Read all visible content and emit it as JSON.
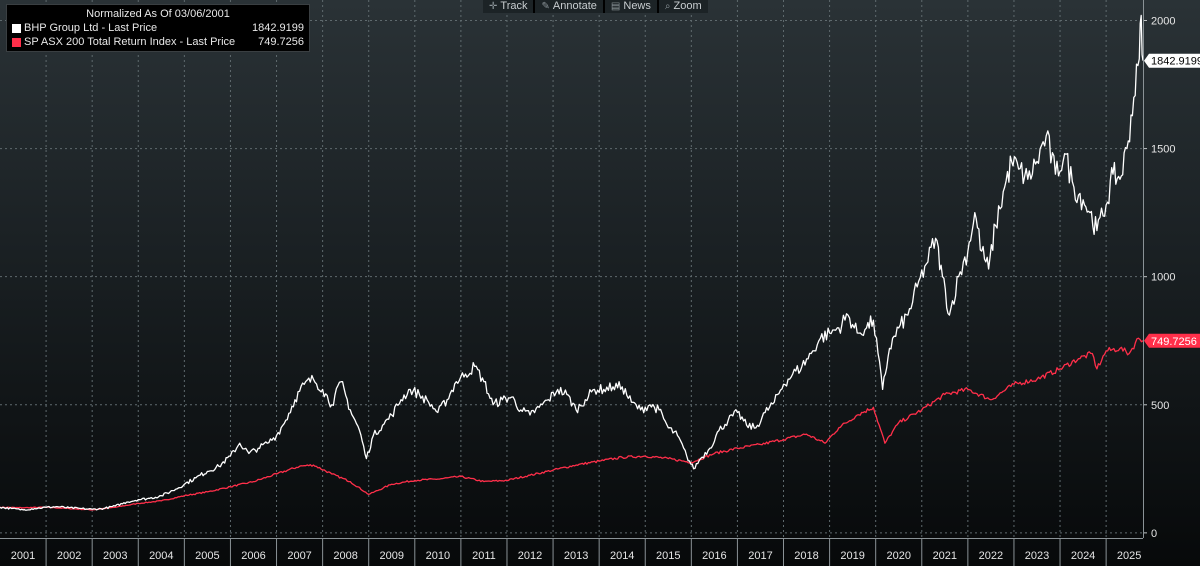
{
  "legend": {
    "title": "Normalized As Of 03/06/2001",
    "items": [
      {
        "name": "BHP Group Ltd - Last Price",
        "value": "1842.9199",
        "color": "#ffffff"
      },
      {
        "name": "SP ASX 200 Total Return Index - Last Price",
        "value": "749.7256",
        "color": "#ff2f4a"
      }
    ]
  },
  "toolbar": {
    "items": [
      {
        "label": "Track",
        "icon": "crosshair-icon"
      },
      {
        "label": "Annotate",
        "icon": "pencil-icon"
      },
      {
        "label": "News",
        "icon": "news-icon"
      },
      {
        "label": "Zoom",
        "icon": "magnifier-icon"
      }
    ]
  },
  "chart_data": {
    "type": "line",
    "title": "Normalized As Of 03/06/2001",
    "x_unit": "year",
    "xlim": [
      2001.0,
      2025.8
    ],
    "ylim": [
      -20,
      2080
    ],
    "y_ticks": [
      0,
      500,
      1000,
      1500,
      2000
    ],
    "x_tick_labels": [
      "2001",
      "2002",
      "2003",
      "2004",
      "2005",
      "2006",
      "2007",
      "2008",
      "2009",
      "2010",
      "2011",
      "2012",
      "2013",
      "2014",
      "2015",
      "2016",
      "2017",
      "2018",
      "2019",
      "2020",
      "2021",
      "2022",
      "2023",
      "2024",
      "2025"
    ],
    "grid": true,
    "legend_position": "top-left",
    "series": [
      {
        "name": "BHP Group Ltd - Last Price",
        "color": "#ffffff",
        "last_value": "1842.9199",
        "points": [
          [
            2001.0,
            100
          ],
          [
            2001.25,
            95
          ],
          [
            2001.5,
            90
          ],
          [
            2001.75,
            95
          ],
          [
            2002.0,
            100
          ],
          [
            2002.25,
            102
          ],
          [
            2002.5,
            98
          ],
          [
            2002.75,
            95
          ],
          [
            2003.0,
            92
          ],
          [
            2003.25,
            95
          ],
          [
            2003.5,
            105
          ],
          [
            2003.75,
            120
          ],
          [
            2004.0,
            130
          ],
          [
            2004.25,
            135
          ],
          [
            2004.5,
            145
          ],
          [
            2004.75,
            165
          ],
          [
            2005.0,
            190
          ],
          [
            2005.25,
            215
          ],
          [
            2005.5,
            240
          ],
          [
            2005.75,
            260
          ],
          [
            2006.0,
            300
          ],
          [
            2006.2,
            350
          ],
          [
            2006.4,
            310
          ],
          [
            2006.6,
            330
          ],
          [
            2006.8,
            350
          ],
          [
            2007.0,
            380
          ],
          [
            2007.2,
            440
          ],
          [
            2007.4,
            520
          ],
          [
            2007.6,
            580
          ],
          [
            2007.8,
            600
          ],
          [
            2008.0,
            560
          ],
          [
            2008.2,
            500
          ],
          [
            2008.4,
            590
          ],
          [
            2008.6,
            480
          ],
          [
            2008.8,
            400
          ],
          [
            2008.95,
            290
          ],
          [
            2009.1,
            380
          ],
          [
            2009.3,
            420
          ],
          [
            2009.5,
            460
          ],
          [
            2009.7,
            520
          ],
          [
            2009.9,
            560
          ],
          [
            2010.1,
            540
          ],
          [
            2010.3,
            510
          ],
          [
            2010.5,
            470
          ],
          [
            2010.7,
            520
          ],
          [
            2010.9,
            590
          ],
          [
            2011.1,
            620
          ],
          [
            2011.3,
            650
          ],
          [
            2011.5,
            590
          ],
          [
            2011.7,
            500
          ],
          [
            2011.9,
            520
          ],
          [
            2012.1,
            530
          ],
          [
            2012.3,
            480
          ],
          [
            2012.5,
            460
          ],
          [
            2012.7,
            490
          ],
          [
            2012.9,
            520
          ],
          [
            2013.1,
            560
          ],
          [
            2013.3,
            540
          ],
          [
            2013.5,
            480
          ],
          [
            2013.7,
            520
          ],
          [
            2013.9,
            560
          ],
          [
            2014.1,
            560
          ],
          [
            2014.3,
            570
          ],
          [
            2014.5,
            570
          ],
          [
            2014.7,
            510
          ],
          [
            2014.9,
            480
          ],
          [
            2015.1,
            500
          ],
          [
            2015.3,
            480
          ],
          [
            2015.5,
            410
          ],
          [
            2015.7,
            380
          ],
          [
            2015.9,
            300
          ],
          [
            2016.05,
            250
          ],
          [
            2016.2,
            290
          ],
          [
            2016.4,
            330
          ],
          [
            2016.6,
            400
          ],
          [
            2016.8,
            440
          ],
          [
            2017.0,
            470
          ],
          [
            2017.2,
            420
          ],
          [
            2017.4,
            410
          ],
          [
            2017.6,
            470
          ],
          [
            2017.8,
            510
          ],
          [
            2018.0,
            580
          ],
          [
            2018.2,
            620
          ],
          [
            2018.4,
            650
          ],
          [
            2018.6,
            700
          ],
          [
            2018.8,
            760
          ],
          [
            2019.0,
            780
          ],
          [
            2019.2,
            800
          ],
          [
            2019.4,
            850
          ],
          [
            2019.6,
            780
          ],
          [
            2019.8,
            800
          ],
          [
            2019.95,
            830
          ],
          [
            2020.15,
            560
          ],
          [
            2020.3,
            720
          ],
          [
            2020.5,
            800
          ],
          [
            2020.7,
            850
          ],
          [
            2020.9,
            960
          ],
          [
            2021.1,
            1050
          ],
          [
            2021.3,
            1150
          ],
          [
            2021.45,
            1000
          ],
          [
            2021.6,
            850
          ],
          [
            2021.8,
            1000
          ],
          [
            2022.0,
            1100
          ],
          [
            2022.15,
            1250
          ],
          [
            2022.3,
            1100
          ],
          [
            2022.45,
            1030
          ],
          [
            2022.6,
            1200
          ],
          [
            2022.8,
            1350
          ],
          [
            2022.95,
            1450
          ],
          [
            2023.1,
            1420
          ],
          [
            2023.3,
            1380
          ],
          [
            2023.5,
            1450
          ],
          [
            2023.7,
            1550
          ],
          [
            2023.9,
            1400
          ],
          [
            2024.1,
            1480
          ],
          [
            2024.3,
            1350
          ],
          [
            2024.5,
            1300
          ],
          [
            2024.65,
            1250
          ],
          [
            2024.8,
            1180
          ],
          [
            2025.0,
            1280
          ],
          [
            2025.15,
            1400
          ],
          [
            2025.3,
            1380
          ],
          [
            2025.45,
            1500
          ],
          [
            2025.6,
            1700
          ],
          [
            2025.72,
            1850
          ],
          [
            2025.76,
            2020
          ],
          [
            2025.8,
            1843
          ]
        ]
      },
      {
        "name": "SP ASX 200 Total Return Index - Last Price",
        "color": "#ff2f4a",
        "last_value": "749.7256",
        "points": [
          [
            2001.0,
            100
          ],
          [
            2001.5,
            98
          ],
          [
            2002.0,
            100
          ],
          [
            2002.5,
            95
          ],
          [
            2003.0,
            90
          ],
          [
            2003.5,
            100
          ],
          [
            2004.0,
            115
          ],
          [
            2004.5,
            125
          ],
          [
            2005.0,
            145
          ],
          [
            2005.5,
            160
          ],
          [
            2006.0,
            180
          ],
          [
            2006.5,
            200
          ],
          [
            2007.0,
            230
          ],
          [
            2007.5,
            260
          ],
          [
            2007.8,
            265
          ],
          [
            2008.2,
            230
          ],
          [
            2008.6,
            200
          ],
          [
            2009.0,
            150
          ],
          [
            2009.5,
            190
          ],
          [
            2010.0,
            205
          ],
          [
            2010.5,
            210
          ],
          [
            2011.0,
            220
          ],
          [
            2011.5,
            200
          ],
          [
            2012.0,
            205
          ],
          [
            2012.5,
            225
          ],
          [
            2013.0,
            245
          ],
          [
            2013.5,
            265
          ],
          [
            2014.0,
            280
          ],
          [
            2014.5,
            295
          ],
          [
            2015.0,
            300
          ],
          [
            2015.5,
            290
          ],
          [
            2016.0,
            275
          ],
          [
            2016.5,
            310
          ],
          [
            2017.0,
            330
          ],
          [
            2017.5,
            345
          ],
          [
            2018.0,
            365
          ],
          [
            2018.5,
            385
          ],
          [
            2018.9,
            350
          ],
          [
            2019.2,
            410
          ],
          [
            2019.6,
            460
          ],
          [
            2019.95,
            490
          ],
          [
            2020.2,
            350
          ],
          [
            2020.5,
            430
          ],
          [
            2021.0,
            480
          ],
          [
            2021.5,
            540
          ],
          [
            2022.0,
            560
          ],
          [
            2022.5,
            520
          ],
          [
            2023.0,
            580
          ],
          [
            2023.5,
            600
          ],
          [
            2024.0,
            640
          ],
          [
            2024.4,
            680
          ],
          [
            2024.7,
            700
          ],
          [
            2024.8,
            640
          ],
          [
            2025.0,
            710
          ],
          [
            2025.3,
            720
          ],
          [
            2025.5,
            700
          ],
          [
            2025.7,
            760
          ],
          [
            2025.8,
            750
          ]
        ]
      }
    ]
  }
}
